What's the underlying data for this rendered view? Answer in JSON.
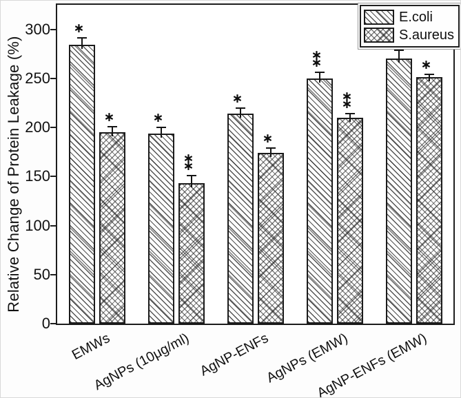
{
  "chart_data": {
    "type": "bar",
    "title": "",
    "xlabel": "",
    "ylabel": "Relative Change of Protein Leakage (%)",
    "categories": [
      "EMWs",
      "AgNPs (10μg/ml)",
      "AgNP-ENFs",
      "AgNPs (EMW)",
      "AgNP-ENFs (EMW)"
    ],
    "series": [
      {
        "name": "E.coli",
        "hatch": "diagonal",
        "values": [
          284,
          194,
          214,
          250,
          270
        ],
        "errors": [
          7,
          6,
          6,
          6,
          9
        ],
        "annotations": [
          "*",
          "*",
          "*",
          "**",
          "**"
        ]
      },
      {
        "name": "S.aureus",
        "hatch": "crosshatch",
        "values": [
          195,
          143,
          174,
          210,
          251
        ],
        "errors": [
          6,
          8,
          5,
          4,
          3
        ],
        "annotations": [
          "*",
          "**",
          "*",
          "**",
          "*"
        ]
      }
    ],
    "ylim": [
      0,
      325
    ],
    "yticks": [
      0,
      50,
      100,
      150,
      200,
      250,
      300
    ],
    "legend_position": "top-right",
    "grid": false,
    "bar_color": "#ffffff",
    "line_color": "#1b1b1b"
  }
}
